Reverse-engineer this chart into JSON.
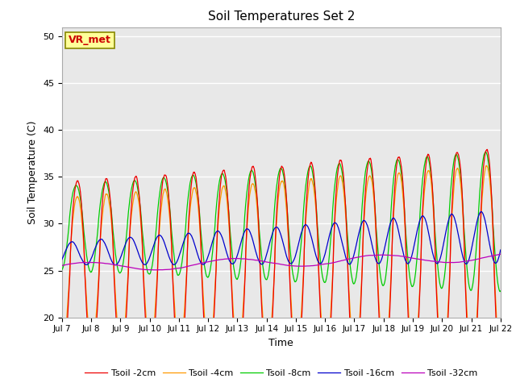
{
  "title": "Soil Temperatures Set 2",
  "xlabel": "Time",
  "ylabel": "Soil Temperature (C)",
  "ylim": [
    20,
    51
  ],
  "yticks": [
    20,
    25,
    30,
    35,
    40,
    45,
    50
  ],
  "x_labels": [
    "Jul 7",
    "Jul 8",
    "Jul 9",
    "Jul 10",
    "Jul 11",
    "Jul 12",
    "Jul 13",
    "Jul 14",
    "Jul 15",
    "Jul 16",
    "Jul 17",
    "Jul 18",
    "Jul 19",
    "Jul 20",
    "Jul 21",
    "Jul 22"
  ],
  "annotation_text": "VR_met",
  "annotation_color": "#cc0000",
  "annotation_bg": "#ffff99",
  "annotation_border": "#888800",
  "colors": {
    "Tsoil -2cm": "#ee0000",
    "Tsoil -4cm": "#ff9900",
    "Tsoil -8cm": "#00cc00",
    "Tsoil -16cm": "#0000cc",
    "Tsoil -32cm": "#bb00bb"
  },
  "bg_color": "#e8e8e8",
  "fig_bg": "#ffffff",
  "n_days": 15,
  "pts_per_day": 144
}
